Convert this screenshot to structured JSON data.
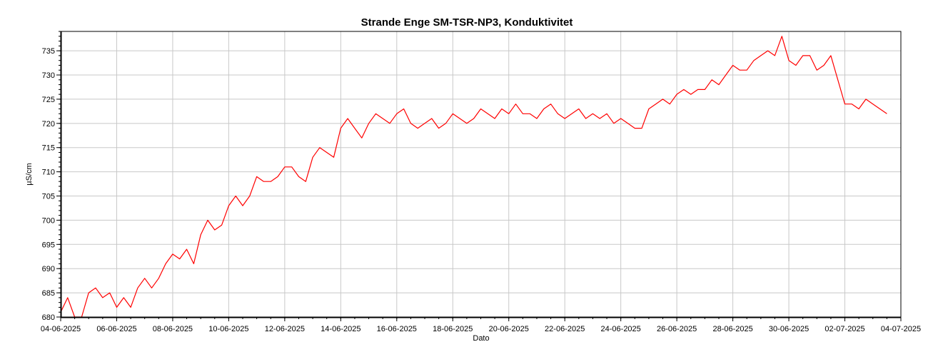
{
  "chart_data": {
    "type": "line",
    "title": "Strande Enge SM-TSR-NP3, Konduktivitet",
    "xlabel": "Dato",
    "ylabel": "µS/cm",
    "xlim": [
      "2025-06-04",
      "2025-07-04"
    ],
    "ylim": [
      680,
      739
    ],
    "x_ticks": [
      "04-06-2025",
      "06-06-2025",
      "08-06-2025",
      "10-06-2025",
      "12-06-2025",
      "14-06-2025",
      "16-06-2025",
      "18-06-2025",
      "20-06-2025",
      "22-06-2025",
      "24-06-2025",
      "26-06-2025",
      "28-06-2025",
      "30-06-2025",
      "02-07-2025",
      "04-07-2025"
    ],
    "y_ticks": [
      680,
      685,
      690,
      695,
      700,
      705,
      710,
      715,
      720,
      725,
      730,
      735
    ],
    "grid": true,
    "colors": {
      "series": "#ff0000",
      "grid": "#c8c8c8",
      "axis": "#000000"
    },
    "series": [
      {
        "points": [
          [
            "2025-06-04 00:00",
            681
          ],
          [
            "2025-06-04 06:00",
            684
          ],
          [
            "2025-06-04 12:00",
            680
          ],
          [
            "2025-06-04 18:00",
            680
          ],
          [
            "2025-06-05 00:00",
            685
          ],
          [
            "2025-06-05 06:00",
            686
          ],
          [
            "2025-06-05 12:00",
            684
          ],
          [
            "2025-06-05 18:00",
            685
          ],
          [
            "2025-06-06 00:00",
            682
          ],
          [
            "2025-06-06 06:00",
            684
          ],
          [
            "2025-06-06 12:00",
            682
          ],
          [
            "2025-06-06 18:00",
            686
          ],
          [
            "2025-06-07 00:00",
            688
          ],
          [
            "2025-06-07 06:00",
            686
          ],
          [
            "2025-06-07 12:00",
            688
          ],
          [
            "2025-06-07 18:00",
            691
          ],
          [
            "2025-06-08 00:00",
            693
          ],
          [
            "2025-06-08 06:00",
            692
          ],
          [
            "2025-06-08 12:00",
            694
          ],
          [
            "2025-06-08 18:00",
            691
          ],
          [
            "2025-06-09 00:00",
            697
          ],
          [
            "2025-06-09 06:00",
            700
          ],
          [
            "2025-06-09 12:00",
            698
          ],
          [
            "2025-06-09 18:00",
            699
          ],
          [
            "2025-06-10 00:00",
            703
          ],
          [
            "2025-06-10 06:00",
            705
          ],
          [
            "2025-06-10 12:00",
            703
          ],
          [
            "2025-06-10 18:00",
            705
          ],
          [
            "2025-06-11 00:00",
            709
          ],
          [
            "2025-06-11 06:00",
            708
          ],
          [
            "2025-06-11 12:00",
            708
          ],
          [
            "2025-06-11 18:00",
            709
          ],
          [
            "2025-06-12 00:00",
            711
          ],
          [
            "2025-06-12 06:00",
            711
          ],
          [
            "2025-06-12 12:00",
            709
          ],
          [
            "2025-06-12 18:00",
            708
          ],
          [
            "2025-06-13 00:00",
            713
          ],
          [
            "2025-06-13 06:00",
            715
          ],
          [
            "2025-06-13 12:00",
            714
          ],
          [
            "2025-06-13 18:00",
            713
          ],
          [
            "2025-06-14 00:00",
            719
          ],
          [
            "2025-06-14 06:00",
            721
          ],
          [
            "2025-06-14 12:00",
            719
          ],
          [
            "2025-06-14 18:00",
            717
          ],
          [
            "2025-06-15 00:00",
            720
          ],
          [
            "2025-06-15 06:00",
            722
          ],
          [
            "2025-06-15 12:00",
            721
          ],
          [
            "2025-06-15 18:00",
            720
          ],
          [
            "2025-06-16 00:00",
            722
          ],
          [
            "2025-06-16 06:00",
            723
          ],
          [
            "2025-06-16 12:00",
            720
          ],
          [
            "2025-06-16 18:00",
            719
          ],
          [
            "2025-06-17 00:00",
            720
          ],
          [
            "2025-06-17 06:00",
            721
          ],
          [
            "2025-06-17 12:00",
            719
          ],
          [
            "2025-06-17 18:00",
            720
          ],
          [
            "2025-06-18 00:00",
            722
          ],
          [
            "2025-06-18 06:00",
            721
          ],
          [
            "2025-06-18 12:00",
            720
          ],
          [
            "2025-06-18 18:00",
            721
          ],
          [
            "2025-06-19 00:00",
            723
          ],
          [
            "2025-06-19 06:00",
            722
          ],
          [
            "2025-06-19 12:00",
            721
          ],
          [
            "2025-06-19 18:00",
            723
          ],
          [
            "2025-06-20 00:00",
            722
          ],
          [
            "2025-06-20 06:00",
            724
          ],
          [
            "2025-06-20 12:00",
            722
          ],
          [
            "2025-06-20 18:00",
            722
          ],
          [
            "2025-06-21 00:00",
            721
          ],
          [
            "2025-06-21 06:00",
            723
          ],
          [
            "2025-06-21 12:00",
            724
          ],
          [
            "2025-06-21 18:00",
            722
          ],
          [
            "2025-06-22 00:00",
            721
          ],
          [
            "2025-06-22 06:00",
            722
          ],
          [
            "2025-06-22 12:00",
            723
          ],
          [
            "2025-06-22 18:00",
            721
          ],
          [
            "2025-06-23 00:00",
            722
          ],
          [
            "2025-06-23 06:00",
            721
          ],
          [
            "2025-06-23 12:00",
            722
          ],
          [
            "2025-06-23 18:00",
            720
          ],
          [
            "2025-06-24 00:00",
            721
          ],
          [
            "2025-06-24 06:00",
            720
          ],
          [
            "2025-06-24 12:00",
            719
          ],
          [
            "2025-06-24 18:00",
            719
          ],
          [
            "2025-06-25 00:00",
            723
          ],
          [
            "2025-06-25 06:00",
            724
          ],
          [
            "2025-06-25 12:00",
            725
          ],
          [
            "2025-06-25 18:00",
            724
          ],
          [
            "2025-06-26 00:00",
            726
          ],
          [
            "2025-06-26 06:00",
            727
          ],
          [
            "2025-06-26 12:00",
            726
          ],
          [
            "2025-06-26 18:00",
            727
          ],
          [
            "2025-06-27 00:00",
            727
          ],
          [
            "2025-06-27 06:00",
            729
          ],
          [
            "2025-06-27 12:00",
            728
          ],
          [
            "2025-06-27 18:00",
            730
          ],
          [
            "2025-06-28 00:00",
            732
          ],
          [
            "2025-06-28 06:00",
            731
          ],
          [
            "2025-06-28 12:00",
            731
          ],
          [
            "2025-06-28 18:00",
            733
          ],
          [
            "2025-06-29 00:00",
            734
          ],
          [
            "2025-06-29 06:00",
            735
          ],
          [
            "2025-06-29 12:00",
            734
          ],
          [
            "2025-06-29 18:00",
            738
          ],
          [
            "2025-06-30 00:00",
            733
          ],
          [
            "2025-06-30 06:00",
            732
          ],
          [
            "2025-06-30 12:00",
            734
          ],
          [
            "2025-06-30 18:00",
            734
          ],
          [
            "2025-07-01 00:00",
            731
          ],
          [
            "2025-07-01 06:00",
            732
          ],
          [
            "2025-07-01 12:00",
            734
          ],
          [
            "2025-07-01 18:00",
            729
          ],
          [
            "2025-07-02 00:00",
            724
          ],
          [
            "2025-07-02 06:00",
            724
          ],
          [
            "2025-07-02 12:00",
            723
          ],
          [
            "2025-07-02 18:00",
            725
          ],
          [
            "2025-07-03 00:00",
            724
          ],
          [
            "2025-07-03 06:00",
            723
          ],
          [
            "2025-07-03 12:00",
            722
          ]
        ]
      }
    ]
  }
}
